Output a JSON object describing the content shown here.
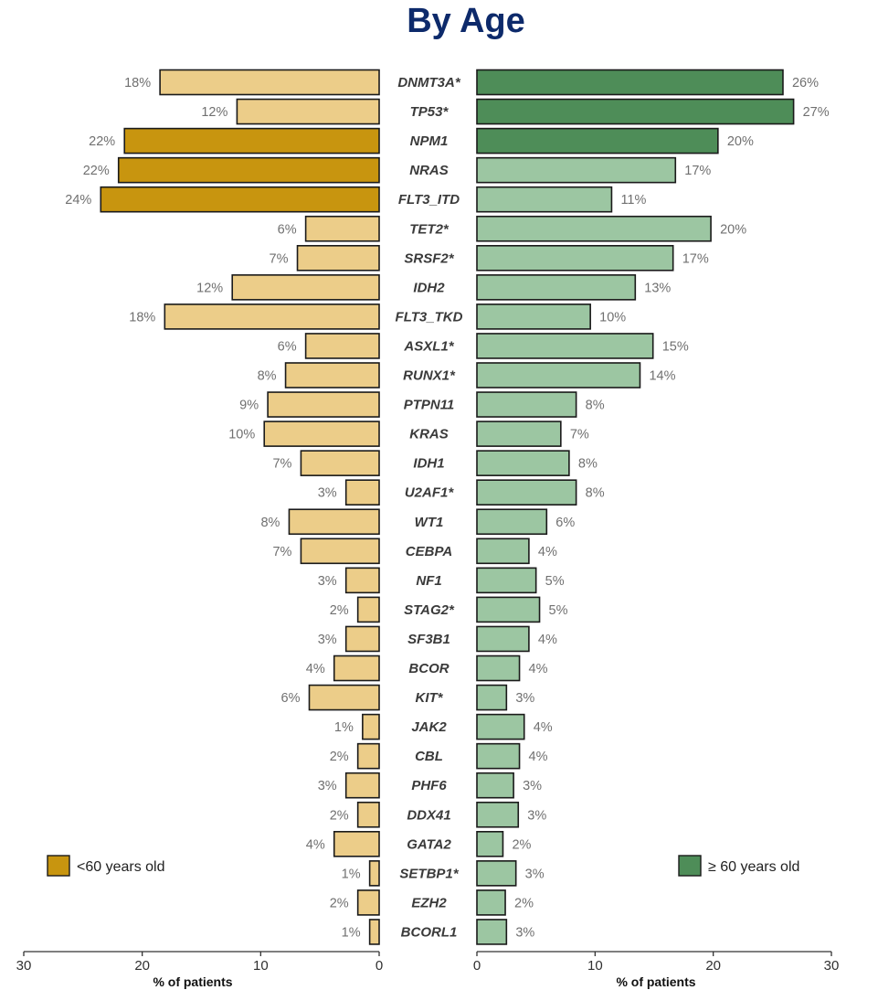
{
  "chart_data": {
    "type": "bar",
    "title": "By Age",
    "orientation": "horizontal-butterfly",
    "categories": [
      "DNMT3A*",
      "TP53*",
      "NPM1",
      "NRAS",
      "FLT3_ITD",
      "TET2*",
      "SRSF2*",
      "IDH2",
      "FLT3_TKD",
      "ASXL1*",
      "RUNX1*",
      "PTPN11",
      "KRAS",
      "IDH1",
      "U2AF1*",
      "WT1",
      "CEBPA",
      "NF1",
      "STAG2*",
      "SF3B1",
      "BCOR",
      "KIT*",
      "JAK2",
      "CBL",
      "PHF6",
      "DDX41",
      "GATA2",
      "SETBP1*",
      "EZH2",
      "BCORL1"
    ],
    "series": [
      {
        "name": "<60 years old",
        "side": "left",
        "color": "#c8950f",
        "light_color": "#eccd89",
        "values": [
          18.5,
          12,
          21.5,
          22,
          23.5,
          6.2,
          6.9,
          12.4,
          18.1,
          6.2,
          7.9,
          9.4,
          9.7,
          6.6,
          2.8,
          7.6,
          6.6,
          2.8,
          1.8,
          2.8,
          3.8,
          5.9,
          1.4,
          1.8,
          2.8,
          1.8,
          3.8,
          0.8,
          1.8,
          0.8
        ],
        "labels": [
          "18%",
          "12%",
          "22%",
          "22%",
          "24%",
          "6%",
          "7%",
          "12%",
          "18%",
          "6%",
          "8%",
          "9%",
          "10%",
          "7%",
          "3%",
          "8%",
          "7%",
          "3%",
          "2%",
          "3%",
          "4%",
          "6%",
          "1%",
          "2%",
          "3%",
          "2%",
          "4%",
          "1%",
          "2%",
          "1%"
        ],
        "highlighted": [
          false,
          false,
          true,
          true,
          true,
          false,
          false,
          false,
          false,
          false,
          false,
          false,
          false,
          false,
          false,
          false,
          false,
          false,
          false,
          false,
          false,
          false,
          false,
          false,
          false,
          false,
          false,
          false,
          false,
          false
        ]
      },
      {
        "name": "≥ 60 years old",
        "side": "right",
        "color": "#4e8d58",
        "light_color": "#9cc6a2",
        "values": [
          25.9,
          26.8,
          20.4,
          16.8,
          11.4,
          19.8,
          16.6,
          13.4,
          9.6,
          14.9,
          13.8,
          8.4,
          7.1,
          7.8,
          8.4,
          5.9,
          4.4,
          5.0,
          5.3,
          4.4,
          3.6,
          2.5,
          4.0,
          3.6,
          3.1,
          3.5,
          2.2,
          3.3,
          2.4,
          2.5
        ],
        "labels": [
          "26%",
          "27%",
          "20%",
          "17%",
          "11%",
          "20%",
          "17%",
          "13%",
          "10%",
          "15%",
          "14%",
          "8%",
          "7%",
          "8%",
          "8%",
          "6%",
          "4%",
          "5%",
          "5%",
          "4%",
          "4%",
          "3%",
          "4%",
          "4%",
          "3%",
          "3%",
          "2%",
          "3%",
          "2%",
          "3%"
        ],
        "highlighted": [
          true,
          true,
          true,
          false,
          false,
          false,
          false,
          false,
          false,
          false,
          false,
          false,
          false,
          false,
          false,
          false,
          false,
          false,
          false,
          false,
          false,
          false,
          false,
          false,
          false,
          false,
          false,
          false,
          false,
          false
        ]
      }
    ],
    "x_axis": {
      "title": "% of patients",
      "range": [
        0,
        30
      ],
      "ticks": [
        "0",
        "10",
        "20",
        "30"
      ],
      "left_ticks": [
        "30",
        "20",
        "10",
        "0"
      ],
      "right_ticks": [
        "0",
        "10",
        "20",
        "30"
      ]
    },
    "grid": false,
    "legend": {
      "left": {
        "label": "<60 years old",
        "position": "bottom-left"
      },
      "right": {
        "label": "≥ 60 years old",
        "position": "bottom-right"
      }
    }
  }
}
